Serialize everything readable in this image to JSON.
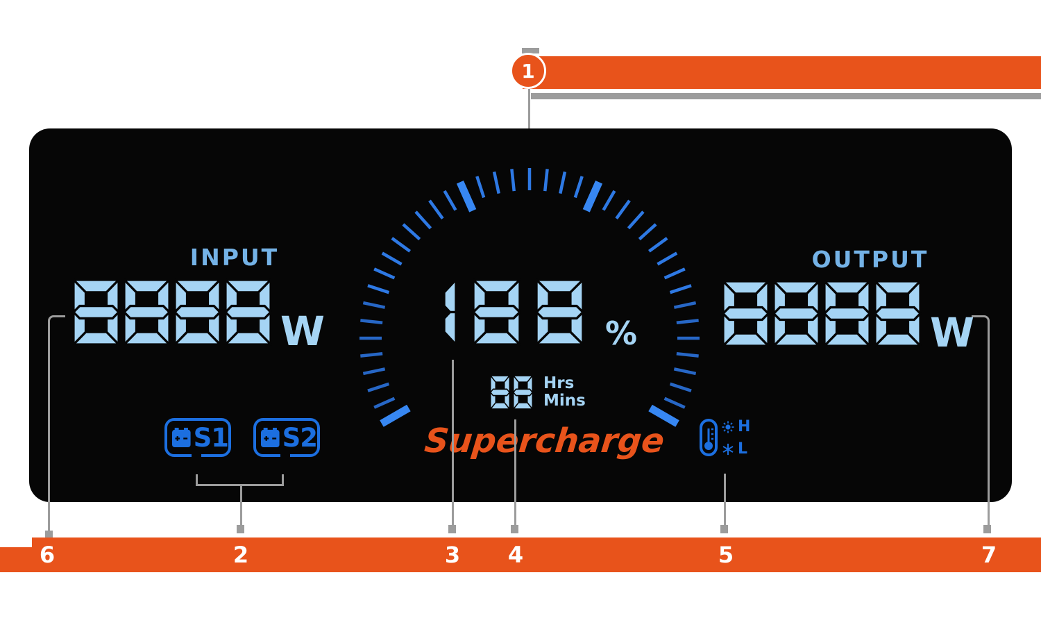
{
  "panel": {
    "input": {
      "label": "INPUT",
      "value": "8888",
      "unit": "W"
    },
    "output": {
      "label": "OUTPUT",
      "value": "8888",
      "unit": "W"
    },
    "battery_percent": {
      "value": "188",
      "unit": "%"
    },
    "time_remaining": {
      "value": "88",
      "unit_top": "Hrs",
      "unit_bottom": "Mins"
    },
    "brand": "Supercharge",
    "battery_slots": [
      {
        "label": "S1"
      },
      {
        "label": "S2"
      }
    ],
    "temperature": {
      "high": "H",
      "low": "L"
    }
  },
  "callouts": {
    "top": {
      "number": "1"
    },
    "bottom": [
      {
        "number": "6"
      },
      {
        "number": "2"
      },
      {
        "number": "3"
      },
      {
        "number": "4"
      },
      {
        "number": "5"
      },
      {
        "number": "7"
      }
    ]
  },
  "colors": {
    "accent_orange": "#e8531b",
    "lcd_digit_blue": "#a5d4f4",
    "lcd_icon_blue": "#1c6fe0",
    "gauge_tick_blue": "#2e79e4",
    "gauge_tick_bright": "#3787f2",
    "callout_gray": "#9c9c9c"
  }
}
